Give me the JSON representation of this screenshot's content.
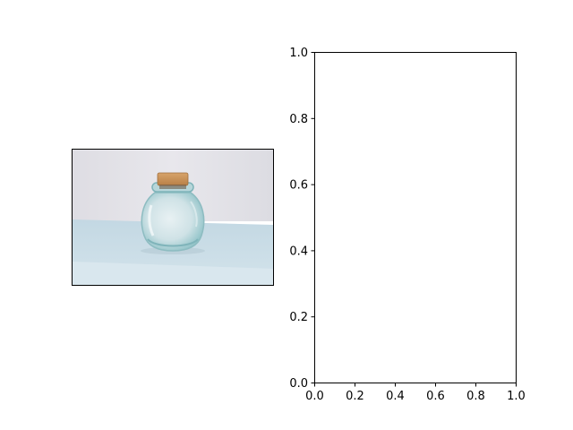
{
  "figure": {
    "background": "#ffffff"
  },
  "image_panel": {
    "subject": "glass-jar-with-cork-photo",
    "colors": {
      "wall": "#e4e3e8",
      "table": "#c9dce6",
      "glass": "#a9cfd3",
      "cork": "#c9935a"
    }
  },
  "chart_data": {
    "type": "scatter",
    "title": "",
    "xlabel": "",
    "ylabel": "",
    "xlim": [
      0.0,
      1.0
    ],
    "ylim": [
      0.0,
      1.0
    ],
    "x": [],
    "y": [],
    "grid": false,
    "legend": "none",
    "xticks": [
      0.0,
      0.2,
      0.4,
      0.6,
      0.8,
      1.0
    ],
    "yticks": [
      0.0,
      0.2,
      0.4,
      0.6,
      0.8,
      1.0
    ],
    "xtick_labels": [
      "0.0",
      "0.2",
      "0.4",
      "0.6",
      "0.8",
      "1.0"
    ],
    "ytick_labels": [
      "0.0",
      "0.2",
      "0.4",
      "0.6",
      "0.8",
      "1.0"
    ]
  }
}
